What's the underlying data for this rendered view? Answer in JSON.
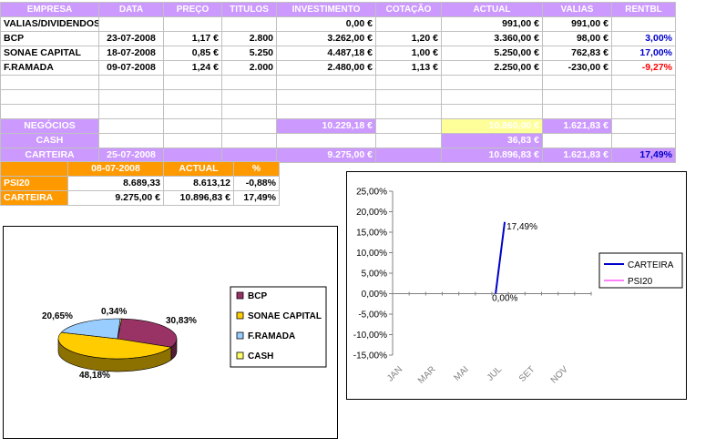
{
  "main_table": {
    "headers": [
      "EMPRESA",
      "DATA",
      "PREÇO",
      "TITULOS",
      "INVESTIMENTO",
      "COTAÇÃO",
      "ACTUAL",
      "VALIAS",
      "RENTBL"
    ],
    "rows": [
      [
        "VALIAS/DIVIDENDOS",
        "",
        "",
        "",
        "0,00 €",
        "",
        "991,00 €",
        "991,00 €",
        ""
      ],
      [
        "BCP",
        "23-07-2008",
        "1,17 €",
        "2.800",
        "3.262,00 €",
        "1,20 €",
        "3.360,00 €",
        "98,00 €",
        "3,00%"
      ],
      [
        "SONAE CAPITAL",
        "18-07-2008",
        "0,85 €",
        "5.250",
        "4.487,18 €",
        "1,00 €",
        "5.250,00 €",
        "762,83 €",
        "17,00%"
      ],
      [
        "F.RAMADA",
        "09-07-2008",
        "1,24 €",
        "2.000",
        "2.480,00 €",
        "1,13 €",
        "2.250,00 €",
        "-230,00 €",
        "-9,27%"
      ]
    ],
    "totals": {
      "negocios": {
        "label": "NEGÓCIOS",
        "investimento": "10.229,18 €",
        "actual": "10.860,00 €",
        "valias": "1.621,83 €"
      },
      "cash": {
        "label": "CASH",
        "actual": "36,83 €"
      },
      "carteira": {
        "label": "CARTEIRA",
        "data": "25-07-2008",
        "investimento": "9.275,00 €",
        "actual": "10.896,83 €",
        "valias": "1.621,83 €",
        "rentbl": "17,49%"
      }
    }
  },
  "compare_table": {
    "headers": [
      "",
      "08-07-2008",
      "ACTUAL",
      "%"
    ],
    "rows": [
      [
        "PSI20",
        "8.689,33",
        "8.613,12",
        "-0,88%"
      ],
      [
        "CARTEIRA",
        "9.275,00 €",
        "10.896,83 €",
        "17,49%"
      ]
    ]
  },
  "pie_chart": {
    "chart_data": {
      "type": "pie",
      "categories": [
        "BCP",
        "SONAE CAPITAL",
        "F.RAMADA",
        "CASH"
      ],
      "values": [
        30.83,
        48.18,
        20.65,
        0.34
      ],
      "labels": [
        "30,83%",
        "48,18%",
        "20,65%",
        "0,34%"
      ],
      "colors": [
        "#993366",
        "#ffcc00",
        "#99ccff",
        "#ffff66"
      ],
      "legend": "right"
    }
  },
  "line_chart": {
    "chart_data": {
      "type": "line",
      "x": [
        "JAN",
        "MAR",
        "MAI",
        "JUL",
        "SET",
        "NOV"
      ],
      "y_ticks": [
        "25,00%",
        "20,00%",
        "15,00%",
        "10,00%",
        "5,00%",
        "0,00%",
        "-5,00%",
        "-10,00%",
        "-15,00%"
      ],
      "ylim": [
        -15,
        25
      ],
      "series": [
        {
          "name": "CARTEIRA",
          "color": "#0000cc",
          "points": [
            {
              "x": "2008-07-08",
              "y": 0
            },
            {
              "x": "2008-07-25",
              "y": 17.49
            }
          ],
          "labels": [
            "0,00%",
            "17,49%"
          ]
        },
        {
          "name": "PSI20",
          "color": "#ff00ff",
          "points": []
        }
      ],
      "legend": "right"
    }
  }
}
